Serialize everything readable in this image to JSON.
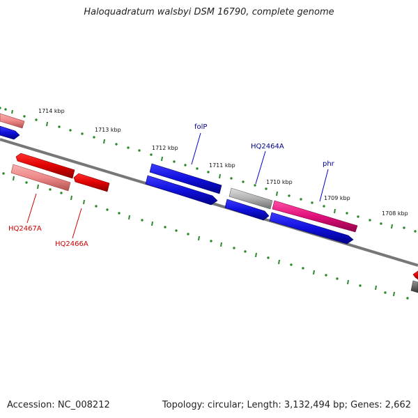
{
  "title": "Haloquadratum walsbyi DSM 16790, complete genome",
  "footer": {
    "accession": "Accession: NC_008212",
    "summary": "Topology: circular; Length: 3,132,494 bp; Genes: 2,662"
  },
  "scale_labels": [
    "1714 kbp",
    "1713 kbp",
    "1712 kbp",
    "1711 kbp",
    "1710 kbp",
    "1709 kbp",
    "1708 kbp"
  ],
  "gene_labels": [
    {
      "text": "folP",
      "color": "#00008b"
    },
    {
      "text": "HQ2464A",
      "color": "#00008b"
    },
    {
      "text": "phr",
      "color": "#00008b"
    },
    {
      "text": "HQ2467A",
      "color": "#cc0000"
    },
    {
      "text": "HQ2466A",
      "color": "#cc0000"
    }
  ],
  "colors": {
    "backbone": "#777777",
    "forward_red": "#e00000",
    "forward_pink": "#ee8888",
    "blue": "#1010dd",
    "magenta": "#e0107a",
    "grey": "#b0b0b0",
    "tick": "#2a8a2a"
  }
}
